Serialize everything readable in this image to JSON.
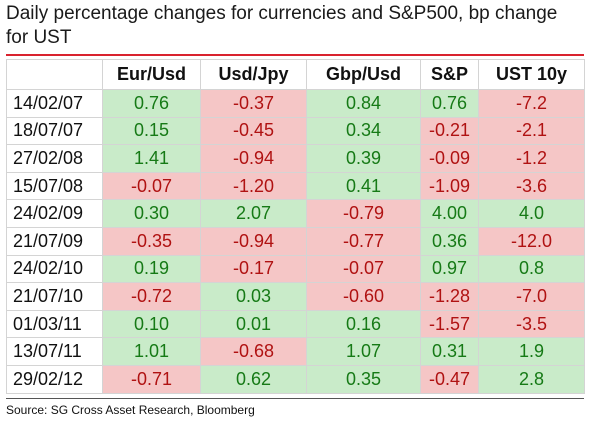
{
  "title": "Daily percentage changes for currencies and S&P500, bp change for UST",
  "source": "Source: SG Cross Asset Research, Bloomberg",
  "colors": {
    "positive_bg": "#c9ebc9",
    "positive_text": "#167a16",
    "negative_bg": "#f5c6c6",
    "negative_text": "#b01212",
    "title_rule": "#d9232e"
  },
  "chart_data": {
    "type": "table",
    "title": "Daily percentage changes for currencies and S&P500, bp change for UST",
    "columns": [
      "Eur/Usd",
      "Usd/Jpy",
      "Gbp/Usd",
      "S&P",
      "UST 10y"
    ],
    "rows": [
      {
        "date": "14/02/07",
        "values": [
          "0.76",
          "-0.37",
          "0.84",
          "0.76",
          "-7.2"
        ]
      },
      {
        "date": "18/07/07",
        "values": [
          "0.15",
          "-0.45",
          "0.34",
          "-0.21",
          "-2.1"
        ]
      },
      {
        "date": "27/02/08",
        "values": [
          "1.41",
          "-0.94",
          "0.39",
          "-0.09",
          "-1.2"
        ]
      },
      {
        "date": "15/07/08",
        "values": [
          "-0.07",
          "-1.20",
          "0.41",
          "-1.09",
          "-3.6"
        ]
      },
      {
        "date": "24/02/09",
        "values": [
          "0.30",
          "2.07",
          "-0.79",
          "4.00",
          "4.0"
        ]
      },
      {
        "date": "21/07/09",
        "values": [
          "-0.35",
          "-0.94",
          "-0.77",
          "0.36",
          "-12.0"
        ]
      },
      {
        "date": "24/02/10",
        "values": [
          "0.19",
          "-0.17",
          "-0.07",
          "0.97",
          "0.8"
        ]
      },
      {
        "date": "21/07/10",
        "values": [
          "-0.72",
          "0.03",
          "-0.60",
          "-1.28",
          "-7.0"
        ]
      },
      {
        "date": "01/03/11",
        "values": [
          "0.10",
          "0.01",
          "0.16",
          "-1.57",
          "-3.5"
        ]
      },
      {
        "date": "13/07/11",
        "values": [
          "1.01",
          "-0.68",
          "1.07",
          "0.31",
          "1.9"
        ]
      },
      {
        "date": "29/02/12",
        "values": [
          "-0.71",
          "0.62",
          "0.35",
          "-0.47",
          "2.8"
        ]
      }
    ]
  }
}
